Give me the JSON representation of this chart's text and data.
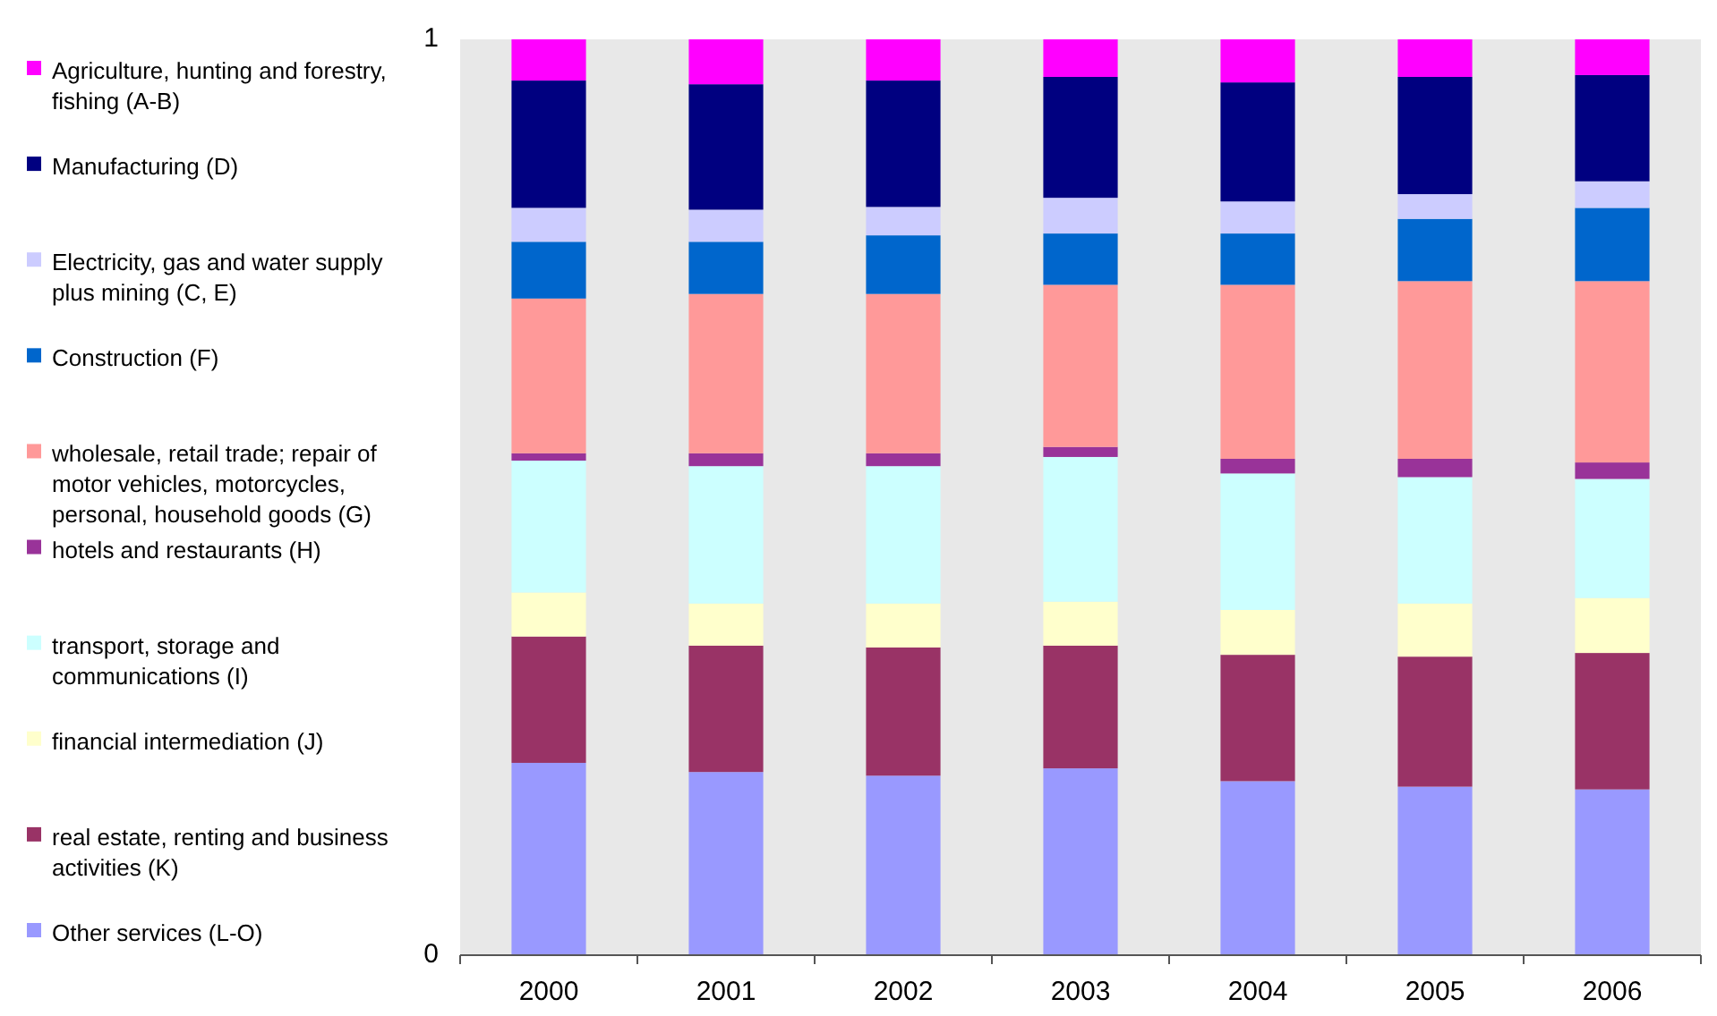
{
  "chart_data": {
    "type": "bar",
    "stacked": true,
    "categories": [
      "2000",
      "2001",
      "2002",
      "2003",
      "2004",
      "2005",
      "2006"
    ],
    "ylim": [
      0,
      1
    ],
    "yticks": [
      0,
      1
    ],
    "grid": false,
    "legend": "left",
    "series": [
      {
        "name": "Other services (L-O)",
        "color": "#9999ff",
        "values": [
          0.21,
          0.2,
          0.196,
          0.204,
          0.19,
          0.184,
          0.181
        ]
      },
      {
        "name": "real estate, renting and business activities (K)",
        "color": "#993366",
        "values": [
          0.138,
          0.138,
          0.14,
          0.134,
          0.138,
          0.142,
          0.149
        ]
      },
      {
        "name": "financial intermediation (J)",
        "color": "#ffffcc",
        "values": [
          0.048,
          0.046,
          0.048,
          0.048,
          0.049,
          0.058,
          0.06
        ]
      },
      {
        "name": "transport, storage and communications (I)",
        "color": "#ccffff",
        "values": [
          0.144,
          0.15,
          0.15,
          0.158,
          0.149,
          0.138,
          0.13
        ]
      },
      {
        "name": "hotels and restaurants (H)",
        "color": "#993399",
        "values": [
          0.008,
          0.014,
          0.014,
          0.011,
          0.016,
          0.02,
          0.018
        ]
      },
      {
        "name": "wholesale, retail trade; repair of motor vehicles, motorcycles, personal, household goods (G)",
        "color": "#ff9999",
        "values": [
          0.169,
          0.174,
          0.174,
          0.177,
          0.19,
          0.194,
          0.198
        ]
      },
      {
        "name": "Construction (F)",
        "color": "#0066cc",
        "values": [
          0.062,
          0.057,
          0.064,
          0.056,
          0.056,
          0.068,
          0.08
        ]
      },
      {
        "name": "Electricity, gas and water supply plus mining (C, E)",
        "color": "#ccccff",
        "values": [
          0.037,
          0.035,
          0.031,
          0.039,
          0.035,
          0.027,
          0.029
        ]
      },
      {
        "name": "Manufacturing (D)",
        "color": "#000080",
        "values": [
          0.139,
          0.137,
          0.138,
          0.132,
          0.13,
          0.128,
          0.116
        ]
      },
      {
        "name": "Agriculture, hunting and forestry, fishing (A-B)",
        "color": "#ff00ff",
        "values": [
          0.045,
          0.049,
          0.045,
          0.041,
          0.047,
          0.041,
          0.039
        ]
      }
    ]
  }
}
